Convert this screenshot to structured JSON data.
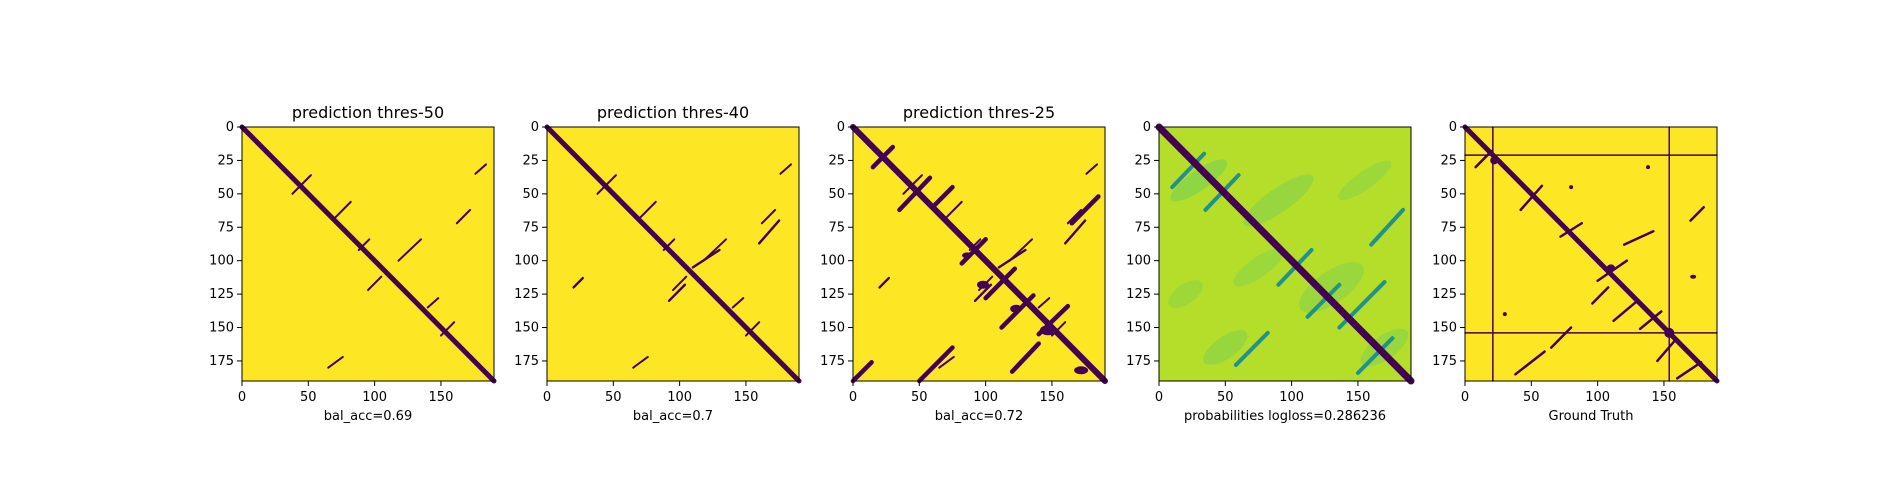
{
  "colors": {
    "low": "#440154",
    "high": "#fde725",
    "mid_dark": "#21918c",
    "mid_light": "#5ec962",
    "soft": "#b5de2b",
    "axis": "#000000"
  },
  "chart_data": [
    {
      "type": "heatmap",
      "title": "prediction thres-50",
      "xlabel": "bal_acc=0.69",
      "ylabel": "",
      "xlim": [
        0,
        190
      ],
      "ylim": [
        190,
        0
      ],
      "xticks": [
        0,
        50,
        100,
        150
      ],
      "yticks": [
        0,
        25,
        50,
        75,
        100,
        125,
        150,
        175
      ],
      "grid": false,
      "legend": "none",
      "values": [
        "high background",
        "low along main diagonal and sparse contact streaks"
      ]
    },
    {
      "type": "heatmap",
      "title": "prediction thres-40",
      "xlabel": "bal_acc=0.7",
      "ylabel": "",
      "xlim": [
        0,
        190
      ],
      "ylim": [
        190,
        0
      ],
      "xticks": [
        0,
        50,
        100,
        150
      ],
      "yticks": [
        0,
        25,
        50,
        75,
        100,
        125,
        150,
        175
      ],
      "grid": false,
      "legend": "none",
      "values": [
        "high background",
        "low along main diagonal and sparse contact streaks"
      ]
    },
    {
      "type": "heatmap",
      "title": "prediction thres-25",
      "xlabel": "bal_acc=0.72",
      "ylabel": "",
      "xlim": [
        0,
        190
      ],
      "ylim": [
        190,
        0
      ],
      "xticks": [
        0,
        50,
        100,
        150
      ],
      "yticks": [
        0,
        25,
        50,
        75,
        100,
        125,
        150,
        175
      ],
      "grid": false,
      "legend": "none",
      "values": [
        "high background",
        "low along main diagonal and denser contact streaks"
      ]
    },
    {
      "type": "heatmap",
      "title": "",
      "xlabel": "probabilities logloss=0.286236",
      "ylabel": "",
      "xlim": [
        0,
        190
      ],
      "ylim": [
        190,
        0
      ],
      "xticks": [
        0,
        50,
        100,
        150
      ],
      "yticks": [
        0,
        25,
        50,
        75,
        100,
        125,
        150,
        175
      ],
      "grid": false,
      "legend": "none",
      "values": [
        "continuous probability map",
        "dark main diagonal with teal contact streaks"
      ]
    },
    {
      "type": "heatmap",
      "title": "",
      "xlabel": "Ground Truth",
      "ylabel": "",
      "xlim": [
        0,
        190
      ],
      "ylim": [
        190,
        0
      ],
      "xticks": [
        0,
        50,
        100,
        150
      ],
      "yticks": [
        0,
        25,
        50,
        75,
        100,
        125,
        150,
        175
      ],
      "grid": false,
      "legend": "none",
      "values": [
        "high background",
        "low along main diagonal, contact streaks, and full lines at index 21 and 154"
      ]
    }
  ]
}
